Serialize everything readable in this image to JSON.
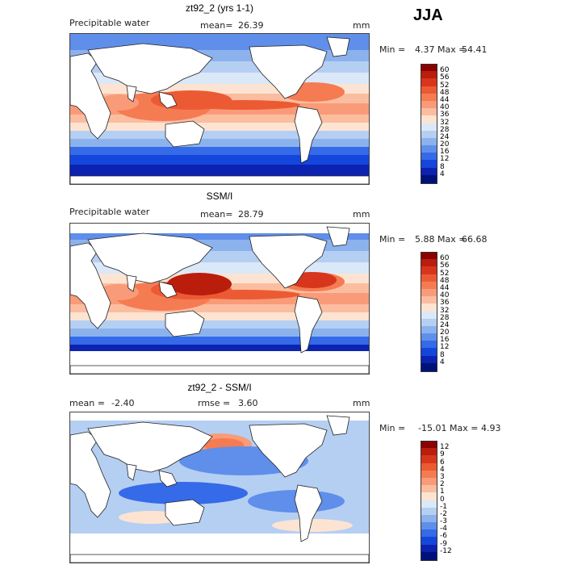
{
  "season": "JJA",
  "panels": [
    {
      "title": "zt92_2 (yrs 1-1)",
      "left_label": "Precipitable water",
      "stat_label": "mean=",
      "stat_value": "26.39",
      "stat2_label": "",
      "stat2_value": "",
      "unit": "mm",
      "min_label": "Min =",
      "min_value": "4.37",
      "max_label": "Max =",
      "max_value": "54.41",
      "colorbar": {
        "levels": [
          "60",
          "56",
          "52",
          "48",
          "44",
          "40",
          "36",
          "32",
          "28",
          "24",
          "20",
          "16",
          "12",
          "8",
          "4"
        ],
        "colors": [
          "#8b0000",
          "#bb1d0c",
          "#d7361d",
          "#ec5a33",
          "#f57b52",
          "#f99b78",
          "#fbbd9f",
          "#fde4d2",
          "#dbe8f8",
          "#b5cff3",
          "#8cb2ee",
          "#5f8fea",
          "#356ae8",
          "#1546dc",
          "#0c22b0",
          "#00127a"
        ]
      },
      "map_style": "moist"
    },
    {
      "title": "SSM/I",
      "left_label": "Precipitable water",
      "stat_label": "mean=",
      "stat_value": "28.79",
      "stat2_label": "",
      "stat2_value": "",
      "unit": "mm",
      "min_label": "Min =",
      "min_value": "5.88",
      "max_label": "Max =",
      "max_value": "66.68",
      "colorbar": {
        "levels": [
          "60",
          "56",
          "52",
          "48",
          "44",
          "40",
          "36",
          "32",
          "28",
          "24",
          "20",
          "16",
          "12",
          "8",
          "4"
        ],
        "colors": [
          "#8b0000",
          "#bb1d0c",
          "#d7361d",
          "#ec5a33",
          "#f57b52",
          "#f99b78",
          "#fbbd9f",
          "#fde4d2",
          "#dbe8f8",
          "#b5cff3",
          "#8cb2ee",
          "#5f8fea",
          "#356ae8",
          "#1546dc",
          "#0c22b0",
          "#00127a"
        ]
      },
      "map_style": "moist"
    },
    {
      "title": "zt92_2 - SSM/I",
      "left_label": "mean =",
      "left_value": "-2.40",
      "stat_label": "rmse =",
      "stat_value": "3.60",
      "unit": "mm",
      "min_label": "Min =",
      "min_value": "-15.01",
      "max_label": "Max =",
      "max_value": "4.93",
      "colorbar": {
        "levels": [
          "12",
          "9",
          "6",
          "4",
          "3",
          "2",
          "1",
          "0",
          "-1",
          "-2",
          "-3",
          "-4",
          "-6",
          "-9",
          "-12"
        ],
        "colors": [
          "#8b0000",
          "#bb1d0c",
          "#d7361d",
          "#ec5a33",
          "#f57b52",
          "#f99b78",
          "#fbbd9f",
          "#fde4d2",
          "#dbe8f8",
          "#b5cff3",
          "#8cb2ee",
          "#5f8fea",
          "#356ae8",
          "#1546dc",
          "#0c22b0",
          "#00127a"
        ]
      },
      "map_style": "diff"
    }
  ]
}
